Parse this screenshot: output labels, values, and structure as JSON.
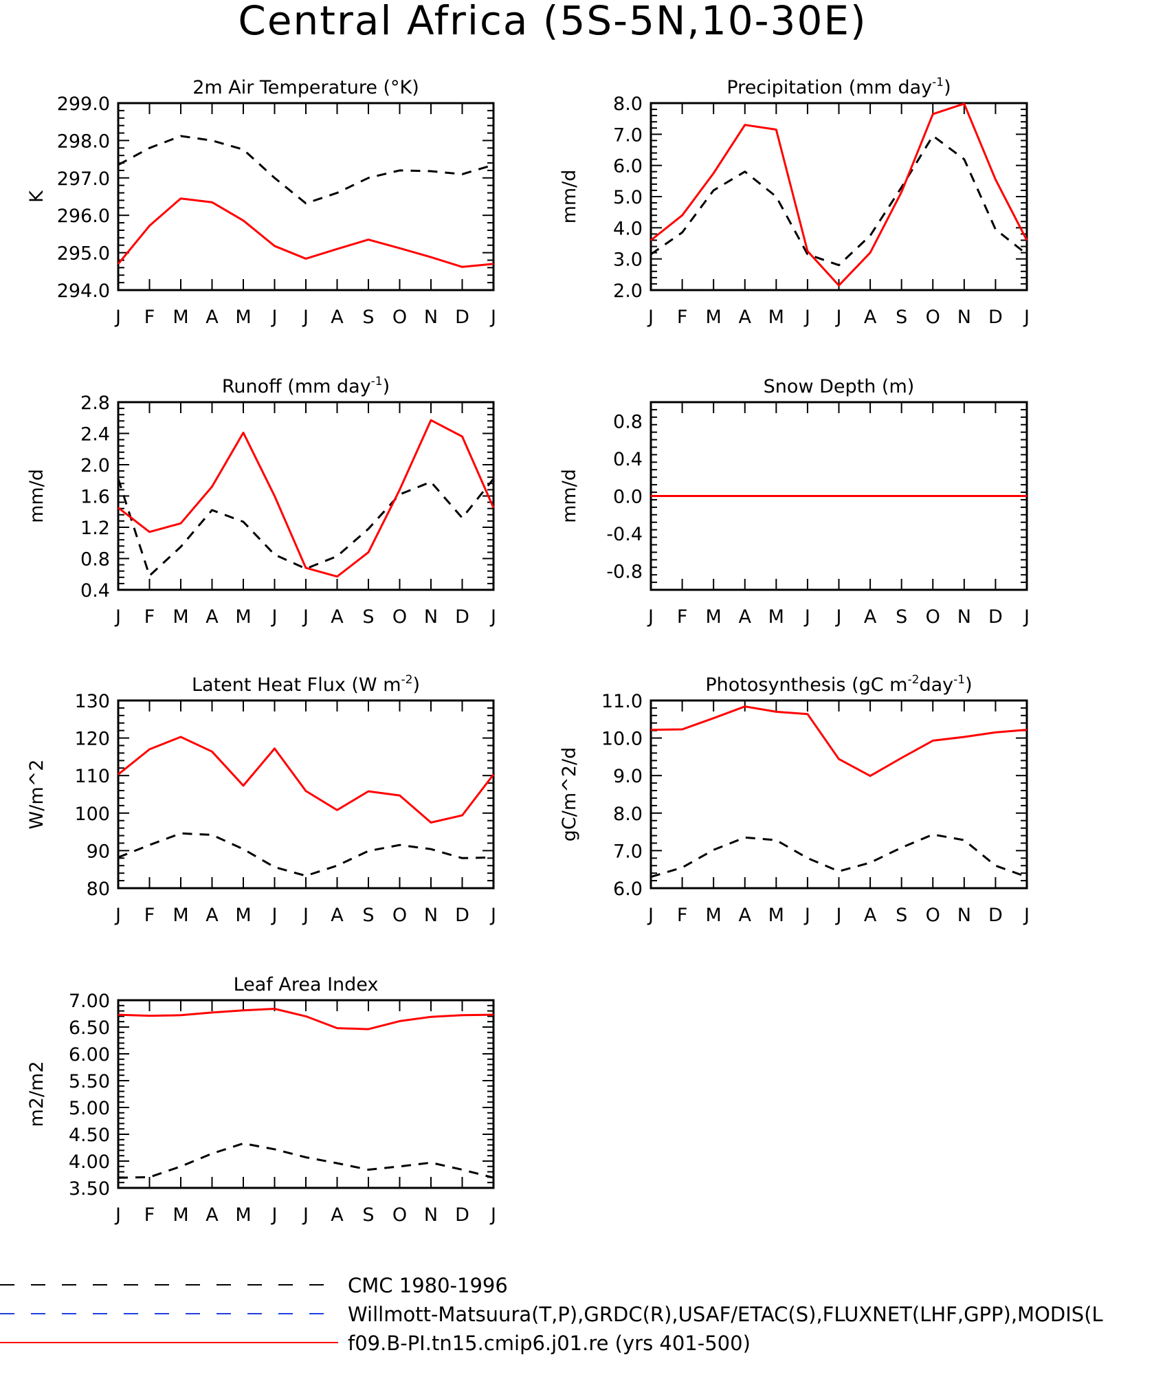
{
  "page": {
    "title": "Central Africa (5S-5N,10-30E)"
  },
  "colors": {
    "obs": "#000000",
    "obs_alt": "#1f3fe0",
    "model": "#ff0000"
  },
  "months": [
    "J",
    "F",
    "M",
    "A",
    "M",
    "J",
    "J",
    "A",
    "S",
    "O",
    "N",
    "D",
    "J"
  ],
  "legend": [
    {
      "label": "CMC 1980-1996",
      "style": "dashed",
      "color": "#000000"
    },
    {
      "label": "Willmott-Matsuura(T,P),GRDC(R),USAF/ETAC(S),FLUXNET(LHF,GPP),MODIS(L",
      "style": "dashed",
      "color": "#1f3fe0"
    },
    {
      "label": "f09.B-PI.tn15.cmip6.j01.re (yrs 401-500)",
      "style": "solid",
      "color": "#ff0000"
    }
  ],
  "chart_data": [
    {
      "type": "line",
      "title": "2m Air Temperature (°K)",
      "ylabel": "K",
      "ylim": [
        294.0,
        299.0
      ],
      "yticks": [
        294.0,
        295.0,
        296.0,
        297.0,
        298.0,
        299.0
      ],
      "ytick_labels": [
        "294.0",
        "295.0",
        "296.0",
        "297.0",
        "298.0",
        "299.0"
      ],
      "series": [
        {
          "name": "CMC 1980-1996",
          "style": "dashed",
          "values": [
            297.35,
            297.8,
            298.12,
            298.0,
            297.76,
            297.0,
            296.32,
            296.6,
            297.0,
            297.2,
            297.18,
            297.1,
            297.35
          ]
        },
        {
          "name": "f09.B-PI.tn15.cmip6.j01.re (yrs 401-500)",
          "style": "solid",
          "values": [
            294.7,
            295.72,
            296.45,
            296.35,
            295.86,
            295.18,
            294.84,
            295.1,
            295.35,
            295.12,
            294.88,
            294.62,
            294.7
          ]
        }
      ]
    },
    {
      "type": "line",
      "title": "Precipitation (mm day",
      "title_sup": "-1",
      "title_end": ")",
      "ylabel": "mm/d",
      "ylim": [
        2.0,
        8.0
      ],
      "yticks": [
        2.0,
        3.0,
        4.0,
        5.0,
        6.0,
        7.0,
        8.0
      ],
      "ytick_labels": [
        "2.0",
        "3.0",
        "4.0",
        "5.0",
        "6.0",
        "7.0",
        "8.0"
      ],
      "series": [
        {
          "name": "CMC 1980-1996",
          "style": "dashed",
          "values": [
            3.15,
            3.85,
            5.2,
            5.8,
            5.0,
            3.15,
            2.8,
            3.75,
            5.3,
            6.95,
            6.2,
            3.95,
            3.15
          ]
        },
        {
          "name": "f09.B-PI.tn15.cmip6.j01.re (yrs 401-500)",
          "style": "solid",
          "values": [
            3.6,
            4.4,
            5.75,
            7.3,
            7.15,
            3.25,
            2.15,
            3.2,
            5.15,
            7.65,
            7.98,
            5.55,
            3.6
          ]
        }
      ]
    },
    {
      "type": "line",
      "title": "Runoff (mm day",
      "title_sup": "-1",
      "title_end": ")",
      "ylabel": "mm/d",
      "ylim": [
        0.4,
        2.8
      ],
      "yticks": [
        0.4,
        0.8,
        1.2,
        1.6,
        2.0,
        2.4,
        2.8
      ],
      "ytick_labels": [
        "0.4",
        "0.8",
        "1.2",
        "1.6",
        "2.0",
        "2.4",
        "2.8"
      ],
      "series": [
        {
          "name": "CMC 1980-1996",
          "style": "dashed",
          "values": [
            1.82,
            0.58,
            0.95,
            1.42,
            1.27,
            0.85,
            0.67,
            0.83,
            1.18,
            1.62,
            1.78,
            1.32,
            1.82
          ]
        },
        {
          "name": "f09.B-PI.tn15.cmip6.j01.re (yrs 401-500)",
          "style": "solid",
          "values": [
            1.45,
            1.14,
            1.25,
            1.72,
            2.41,
            1.6,
            0.68,
            0.57,
            0.88,
            1.68,
            2.57,
            2.36,
            1.45
          ]
        }
      ]
    },
    {
      "type": "line",
      "title": "Snow Depth (m)",
      "ylabel": "mm/d",
      "ylim": [
        -1.0,
        1.0
      ],
      "yticks": [
        -0.8,
        -0.4,
        0.0,
        0.4,
        0.8
      ],
      "ytick_labels": [
        "-0.8",
        "-0.4",
        "0.0",
        "0.4",
        "0.8"
      ],
      "series": [
        {
          "name": "CMC 1980-1996",
          "style": "dashed",
          "values": [
            0,
            0,
            0,
            0,
            0,
            0,
            0,
            0,
            0,
            0,
            0,
            0,
            0
          ]
        },
        {
          "name": "f09.B-PI.tn15.cmip6.j01.re (yrs 401-500)",
          "style": "solid",
          "values": [
            0,
            0,
            0,
            0,
            0,
            0,
            0,
            0,
            0,
            0,
            0,
            0,
            0
          ]
        }
      ]
    },
    {
      "type": "line",
      "title": "Latent Heat Flux (W m",
      "title_sup": "-2",
      "title_end": ")",
      "ylabel": "W/m^2",
      "ylim": [
        80,
        130
      ],
      "yticks": [
        80,
        90,
        100,
        110,
        120,
        130
      ],
      "ytick_labels": [
        "80",
        "90",
        "100",
        "110",
        "120",
        "130"
      ],
      "series": [
        {
          "name": "CMC 1980-1996",
          "style": "dashed",
          "values": [
            88.2,
            91.5,
            94.6,
            94.2,
            90.4,
            85.6,
            83.3,
            86.0,
            89.9,
            91.5,
            90.4,
            88.0,
            88.2
          ]
        },
        {
          "name": "f09.B-PI.tn15.cmip6.j01.re (yrs 401-500)",
          "style": "solid",
          "values": [
            110.3,
            117.0,
            120.3,
            116.4,
            107.3,
            117.2,
            105.9,
            100.8,
            105.8,
            104.7,
            97.5,
            99.4,
            110.3
          ]
        }
      ]
    },
    {
      "type": "line",
      "title": "Photosynthesis (gC m",
      "title_sup": "-2",
      "title_mid": "day",
      "title_sup2": "-1",
      "title_end": ")",
      "ylabel": "gC/m^2/d",
      "ylim": [
        6.0,
        11.0
      ],
      "yticks": [
        6.0,
        7.0,
        8.0,
        9.0,
        10.0,
        11.0
      ],
      "ytick_labels": [
        "6.0",
        "7.0",
        "8.0",
        "9.0",
        "10.0",
        "11.0"
      ],
      "series": [
        {
          "name": "CMC 1980-1996",
          "style": "dashed",
          "values": [
            6.3,
            6.55,
            7.02,
            7.35,
            7.28,
            6.8,
            6.45,
            6.68,
            7.08,
            7.43,
            7.28,
            6.6,
            6.3
          ]
        },
        {
          "name": "f09.B-PI.tn15.cmip6.j01.re (yrs 401-500)",
          "style": "solid",
          "values": [
            10.22,
            10.23,
            10.53,
            10.84,
            10.7,
            10.64,
            9.44,
            8.99,
            9.47,
            9.93,
            10.03,
            10.15,
            10.22
          ]
        }
      ]
    },
    {
      "type": "line",
      "title": "Leaf Area Index",
      "ylabel": "m2/m2",
      "ylim": [
        3.5,
        7.0
      ],
      "yticks": [
        3.5,
        4.0,
        4.5,
        5.0,
        5.5,
        6.0,
        6.5,
        7.0
      ],
      "ytick_labels": [
        "3.50",
        "4.00",
        "4.50",
        "5.00",
        "5.50",
        "6.00",
        "6.50",
        "7.00"
      ],
      "series": [
        {
          "name": "CMC 1980-1996",
          "style": "dashed",
          "values": [
            3.69,
            3.7,
            3.9,
            4.14,
            4.33,
            4.22,
            4.07,
            3.96,
            3.84,
            3.9,
            3.97,
            3.84,
            3.69
          ]
        },
        {
          "name": "f09.B-PI.tn15.cmip6.j01.re (yrs 401-500)",
          "style": "solid",
          "values": [
            6.73,
            6.71,
            6.72,
            6.77,
            6.81,
            6.84,
            6.7,
            6.48,
            6.46,
            6.61,
            6.69,
            6.72,
            6.73
          ]
        }
      ]
    }
  ]
}
